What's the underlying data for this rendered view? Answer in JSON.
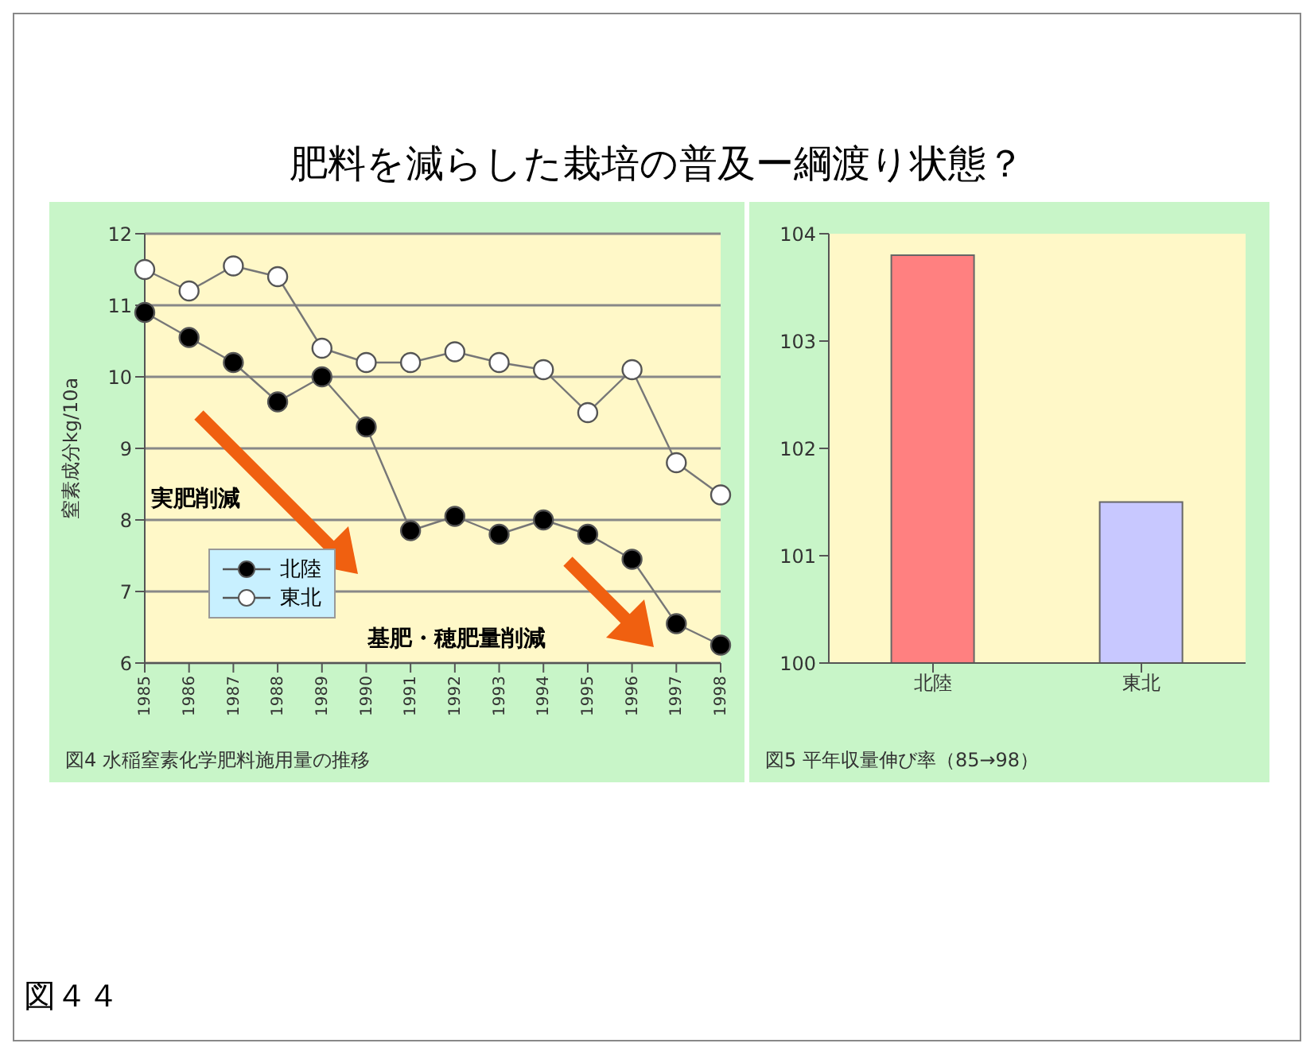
{
  "chart_data": [
    {
      "type": "line",
      "title": "肥料を減らした栽培の普及ー綱渡り状態？",
      "ylabel": "窒素成分kg/10a",
      "categories": [
        "1985",
        "1986",
        "1987",
        "1988",
        "1989",
        "1990",
        "1991",
        "1992",
        "1993",
        "1994",
        "1995",
        "1996",
        "1997",
        "1998"
      ],
      "series": [
        {
          "name": "北陸",
          "color": "#000000",
          "values": [
            10.9,
            10.55,
            10.2,
            9.65,
            10.0,
            9.3,
            7.85,
            8.05,
            7.8,
            8.0,
            7.8,
            7.45,
            6.55,
            6.25
          ]
        },
        {
          "name": "東北",
          "color": "#ffffff",
          "values": [
            11.5,
            11.2,
            11.55,
            11.4,
            10.4,
            10.2,
            10.2,
            10.35,
            10.2,
            10.1,
            9.5,
            10.1,
            8.8,
            8.35
          ]
        }
      ],
      "ylim": [
        6,
        12
      ],
      "yticks": [
        6,
        7,
        8,
        9,
        10,
        11,
        12
      ],
      "grid": "y",
      "legend": "bottom left",
      "marker": "circle",
      "line_style": "solid",
      "annotations": [
        "実肥削減",
        "基肥・穂肥量削減",
        "図4  水稲窒素化学肥料施用量の推移",
        "図４４"
      ]
    },
    {
      "type": "bar",
      "categories": [
        "北陸",
        "東北"
      ],
      "values": [
        103.8,
        101.5
      ],
      "colors": [
        "#ff8080",
        "#c8c8ff"
      ],
      "ylim": [
        100,
        104
      ],
      "yticks": [
        100,
        101,
        102,
        103,
        104
      ],
      "grid": false,
      "annotations": [
        "図5  平年収量伸び率（85→98）"
      ]
    }
  ]
}
